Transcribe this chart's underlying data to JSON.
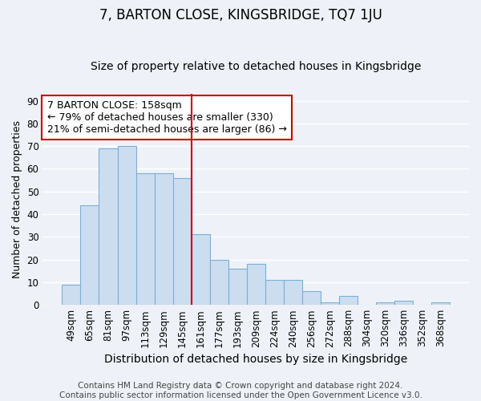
{
  "title": "7, BARTON CLOSE, KINGSBRIDGE, TQ7 1JU",
  "subtitle": "Size of property relative to detached houses in Kingsbridge",
  "xlabel": "Distribution of detached houses by size in Kingsbridge",
  "ylabel": "Number of detached properties",
  "categories": [
    "49sqm",
    "65sqm",
    "81sqm",
    "97sqm",
    "113sqm",
    "129sqm",
    "145sqm",
    "161sqm",
    "177sqm",
    "193sqm",
    "209sqm",
    "224sqm",
    "240sqm",
    "256sqm",
    "272sqm",
    "288sqm",
    "304sqm",
    "320sqm",
    "336sqm",
    "352sqm",
    "368sqm"
  ],
  "values": [
    9,
    44,
    69,
    70,
    58,
    58,
    56,
    31,
    20,
    16,
    18,
    11,
    11,
    6,
    1,
    4,
    0,
    1,
    2,
    0,
    1
  ],
  "bar_color": "#ccddf0",
  "bar_edge_color": "#7bafd4",
  "subject_line_color": "#cc0000",
  "subject_line_index": 6.5,
  "ylim": [
    0,
    93
  ],
  "yticks": [
    0,
    10,
    20,
    30,
    40,
    50,
    60,
    70,
    80,
    90
  ],
  "annotation_text": "7 BARTON CLOSE: 158sqm\n← 79% of detached houses are smaller (330)\n21% of semi-detached houses are larger (86) →",
  "annotation_box_color": "#ffffff",
  "annotation_box_edge": "#cc0000",
  "footer_text": "Contains HM Land Registry data © Crown copyright and database right 2024.\nContains public sector information licensed under the Open Government Licence v3.0.",
  "background_color": "#eef2f8",
  "grid_color": "#ffffff",
  "title_fontsize": 12,
  "subtitle_fontsize": 10,
  "xlabel_fontsize": 10,
  "ylabel_fontsize": 9,
  "tick_fontsize": 8.5,
  "annotation_fontsize": 9,
  "footer_fontsize": 7.5
}
